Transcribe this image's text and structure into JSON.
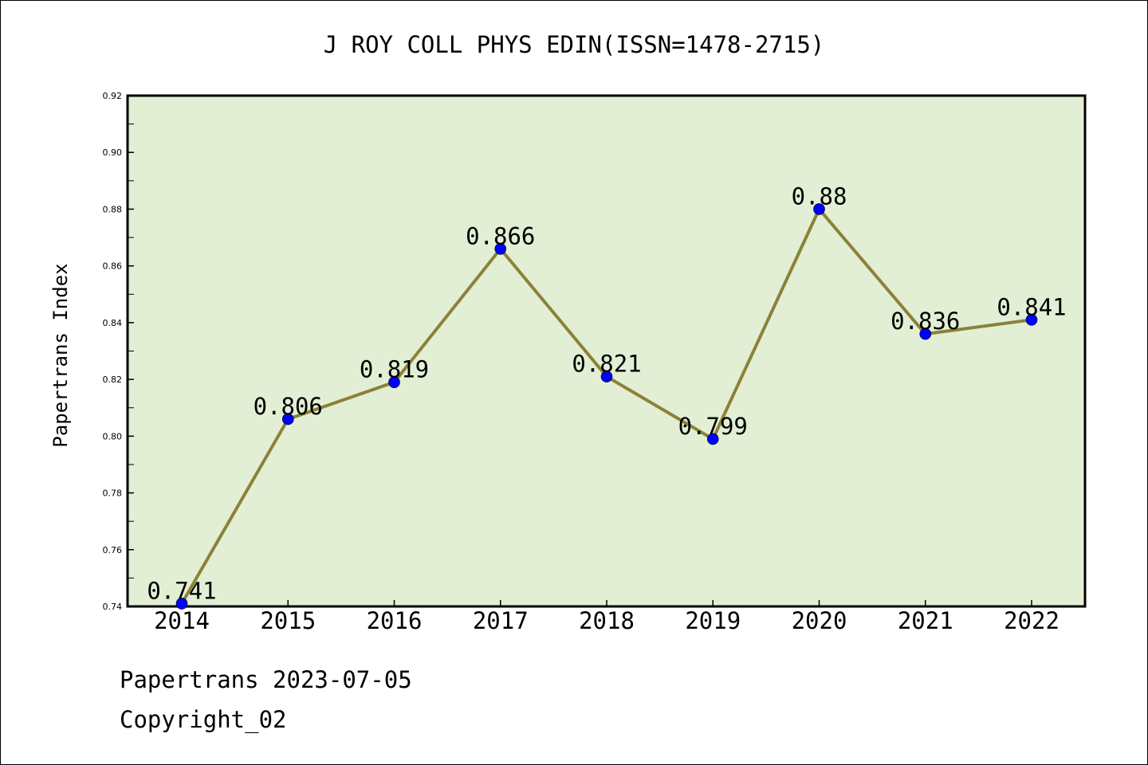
{
  "chart_data": {
    "type": "line",
    "title": "J ROY COLL PHYS EDIN(ISSN=1478-2715)",
    "xlabel": "",
    "ylabel": "Papertrans Index",
    "categories": [
      "2014",
      "2015",
      "2016",
      "2017",
      "2018",
      "2019",
      "2020",
      "2021",
      "2022"
    ],
    "series": [
      {
        "values": [
          0.741,
          0.806,
          0.819,
          0.866,
          0.821,
          0.799,
          0.88,
          0.836,
          0.841
        ],
        "labels": [
          "0.741",
          "0.806",
          "0.819",
          "0.866",
          "0.821",
          "0.799",
          "0.88",
          "0.836",
          "0.841"
        ]
      }
    ],
    "ylim": [
      0.74,
      0.92
    ],
    "yticks": [
      "0.74",
      "0.76",
      "0.78",
      "0.80",
      "0.82",
      "0.84",
      "0.86",
      "0.88",
      "0.90",
      "0.92"
    ],
    "grid": false,
    "colors": {
      "plot_background": "#e2efd5",
      "line": "#8b8238",
      "marker": "#0000ff"
    }
  },
  "footer": {
    "line1": "Papertrans 2023-07-05",
    "line2": "Copyright_02"
  }
}
